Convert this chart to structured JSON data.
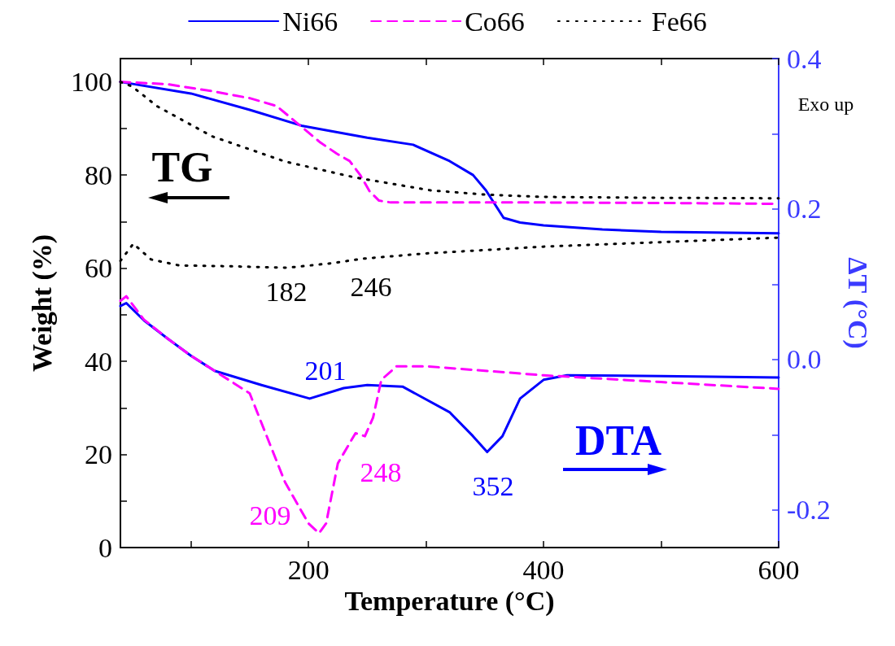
{
  "chart_data": {
    "type": "line",
    "xlabel": "Temperature (°C)",
    "ylabel": "Weight (%)",
    "y2label": "ΔT (°C)",
    "xlim": [
      40,
      600
    ],
    "xticks": [
      {
        "value": 100,
        "label": null
      },
      200,
      {
        "value": 300,
        "label": null
      },
      400,
      {
        "value": 500,
        "label": null
      },
      600
    ],
    "ylim": [
      0,
      105
    ],
    "yticks": [
      0,
      {
        "value": 10,
        "label": null
      },
      20,
      {
        "value": 30,
        "label": null
      },
      40,
      {
        "value": 50,
        "label": null
      },
      60,
      {
        "value": 70,
        "label": null
      },
      80,
      {
        "value": 90,
        "label": null
      },
      100
    ],
    "y2lim": [
      -0.25,
      0.4
    ],
    "y2ticks": [
      {
        "value": -0.2,
        "label": "-0.2"
      },
      {
        "value": -0.1,
        "label": null
      },
      {
        "value": 0,
        "label": "0.0"
      },
      {
        "value": 0.1,
        "label": null
      },
      {
        "value": 0.2,
        "label": "0.2"
      },
      {
        "value": 0.3,
        "label": null
      },
      {
        "value": 0.4,
        "label": "0.4"
      }
    ],
    "grid": false,
    "legend": "top",
    "marker": "none",
    "annotations": [
      "TG",
      "DTA",
      "Exo up",
      "182",
      "246",
      "201",
      "209",
      "248",
      "352"
    ],
    "series": [
      {
        "name": "Ni66",
        "color": "#0000ff",
        "line_style": "solid",
        "x": [
          40,
          100,
          150,
          194,
          250,
          289,
          320,
          340,
          351,
          366,
          380,
          400,
          450,
          500,
          600
        ],
        "values": [
          100,
          97.5,
          94,
          90.6,
          88,
          86.5,
          83,
          80,
          76.7,
          70.8,
          69.8,
          69.2,
          68.3,
          67.8,
          67.5
        ]
      },
      {
        "name": "Co66",
        "color": "#ff00ff",
        "line_style": "dashed",
        "x": [
          40,
          80,
          118,
          150,
          173,
          191,
          210,
          224,
          235,
          244,
          252,
          260,
          270,
          300,
          400,
          500,
          600
        ],
        "values": [
          100,
          99.5,
          98,
          96.5,
          94.8,
          91,
          87,
          84.6,
          83,
          80,
          76.5,
          74.5,
          74.1,
          74.1,
          74.1,
          74,
          73.8
        ]
      },
      {
        "name": "Fe66",
        "color": "#000000",
        "line_style": "dotted",
        "x": [
          40,
          50,
          71,
          118,
          180,
          239,
          304,
          350,
          398,
          500,
          600
        ],
        "values": [
          100,
          99,
          94.8,
          88.3,
          82.9,
          79.5,
          76.7,
          75.8,
          75.3,
          75.1,
          75
        ]
      },
      {
        "color": "#0000ff",
        "line_style": "solid",
        "axis": "y2",
        "x": [
          40,
          45,
          60,
          80,
          100,
          120,
          160,
          201,
          230,
          250,
          280,
          320,
          340,
          352,
          365,
          380,
          400,
          420,
          500,
          600
        ],
        "values": [
          0.071,
          0.075,
          0.052,
          0.028,
          0.005,
          -0.015,
          -0.034,
          -0.052,
          -0.038,
          -0.034,
          -0.036,
          -0.07,
          -0.102,
          -0.123,
          -0.102,
          -0.052,
          -0.027,
          -0.021,
          -0.022,
          -0.024
        ]
      },
      {
        "color": "#ff00ff",
        "line_style": "dashed",
        "axis": "y2",
        "x": [
          40,
          45,
          60,
          80,
          100,
          120,
          150,
          180,
          200,
          209,
          215,
          225,
          240,
          248,
          255,
          262,
          275,
          300,
          400,
          500,
          600
        ],
        "values": [
          0.078,
          0.084,
          0.053,
          0.028,
          0.005,
          -0.015,
          -0.045,
          -0.163,
          -0.218,
          -0.231,
          -0.218,
          -0.138,
          -0.098,
          -0.102,
          -0.077,
          -0.027,
          -0.009,
          -0.009,
          -0.021,
          -0.03,
          -0.039
        ]
      },
      {
        "color": "#000000",
        "line_style": "dotted",
        "axis": "y2",
        "x": [
          40,
          51,
          66,
          90,
          130,
          182,
          220,
          246,
          300,
          400,
          500,
          600
        ],
        "values": [
          0.131,
          0.154,
          0.133,
          0.125,
          0.124,
          0.122,
          0.128,
          0.134,
          0.141,
          0.15,
          0.156,
          0.162
        ]
      }
    ]
  }
}
